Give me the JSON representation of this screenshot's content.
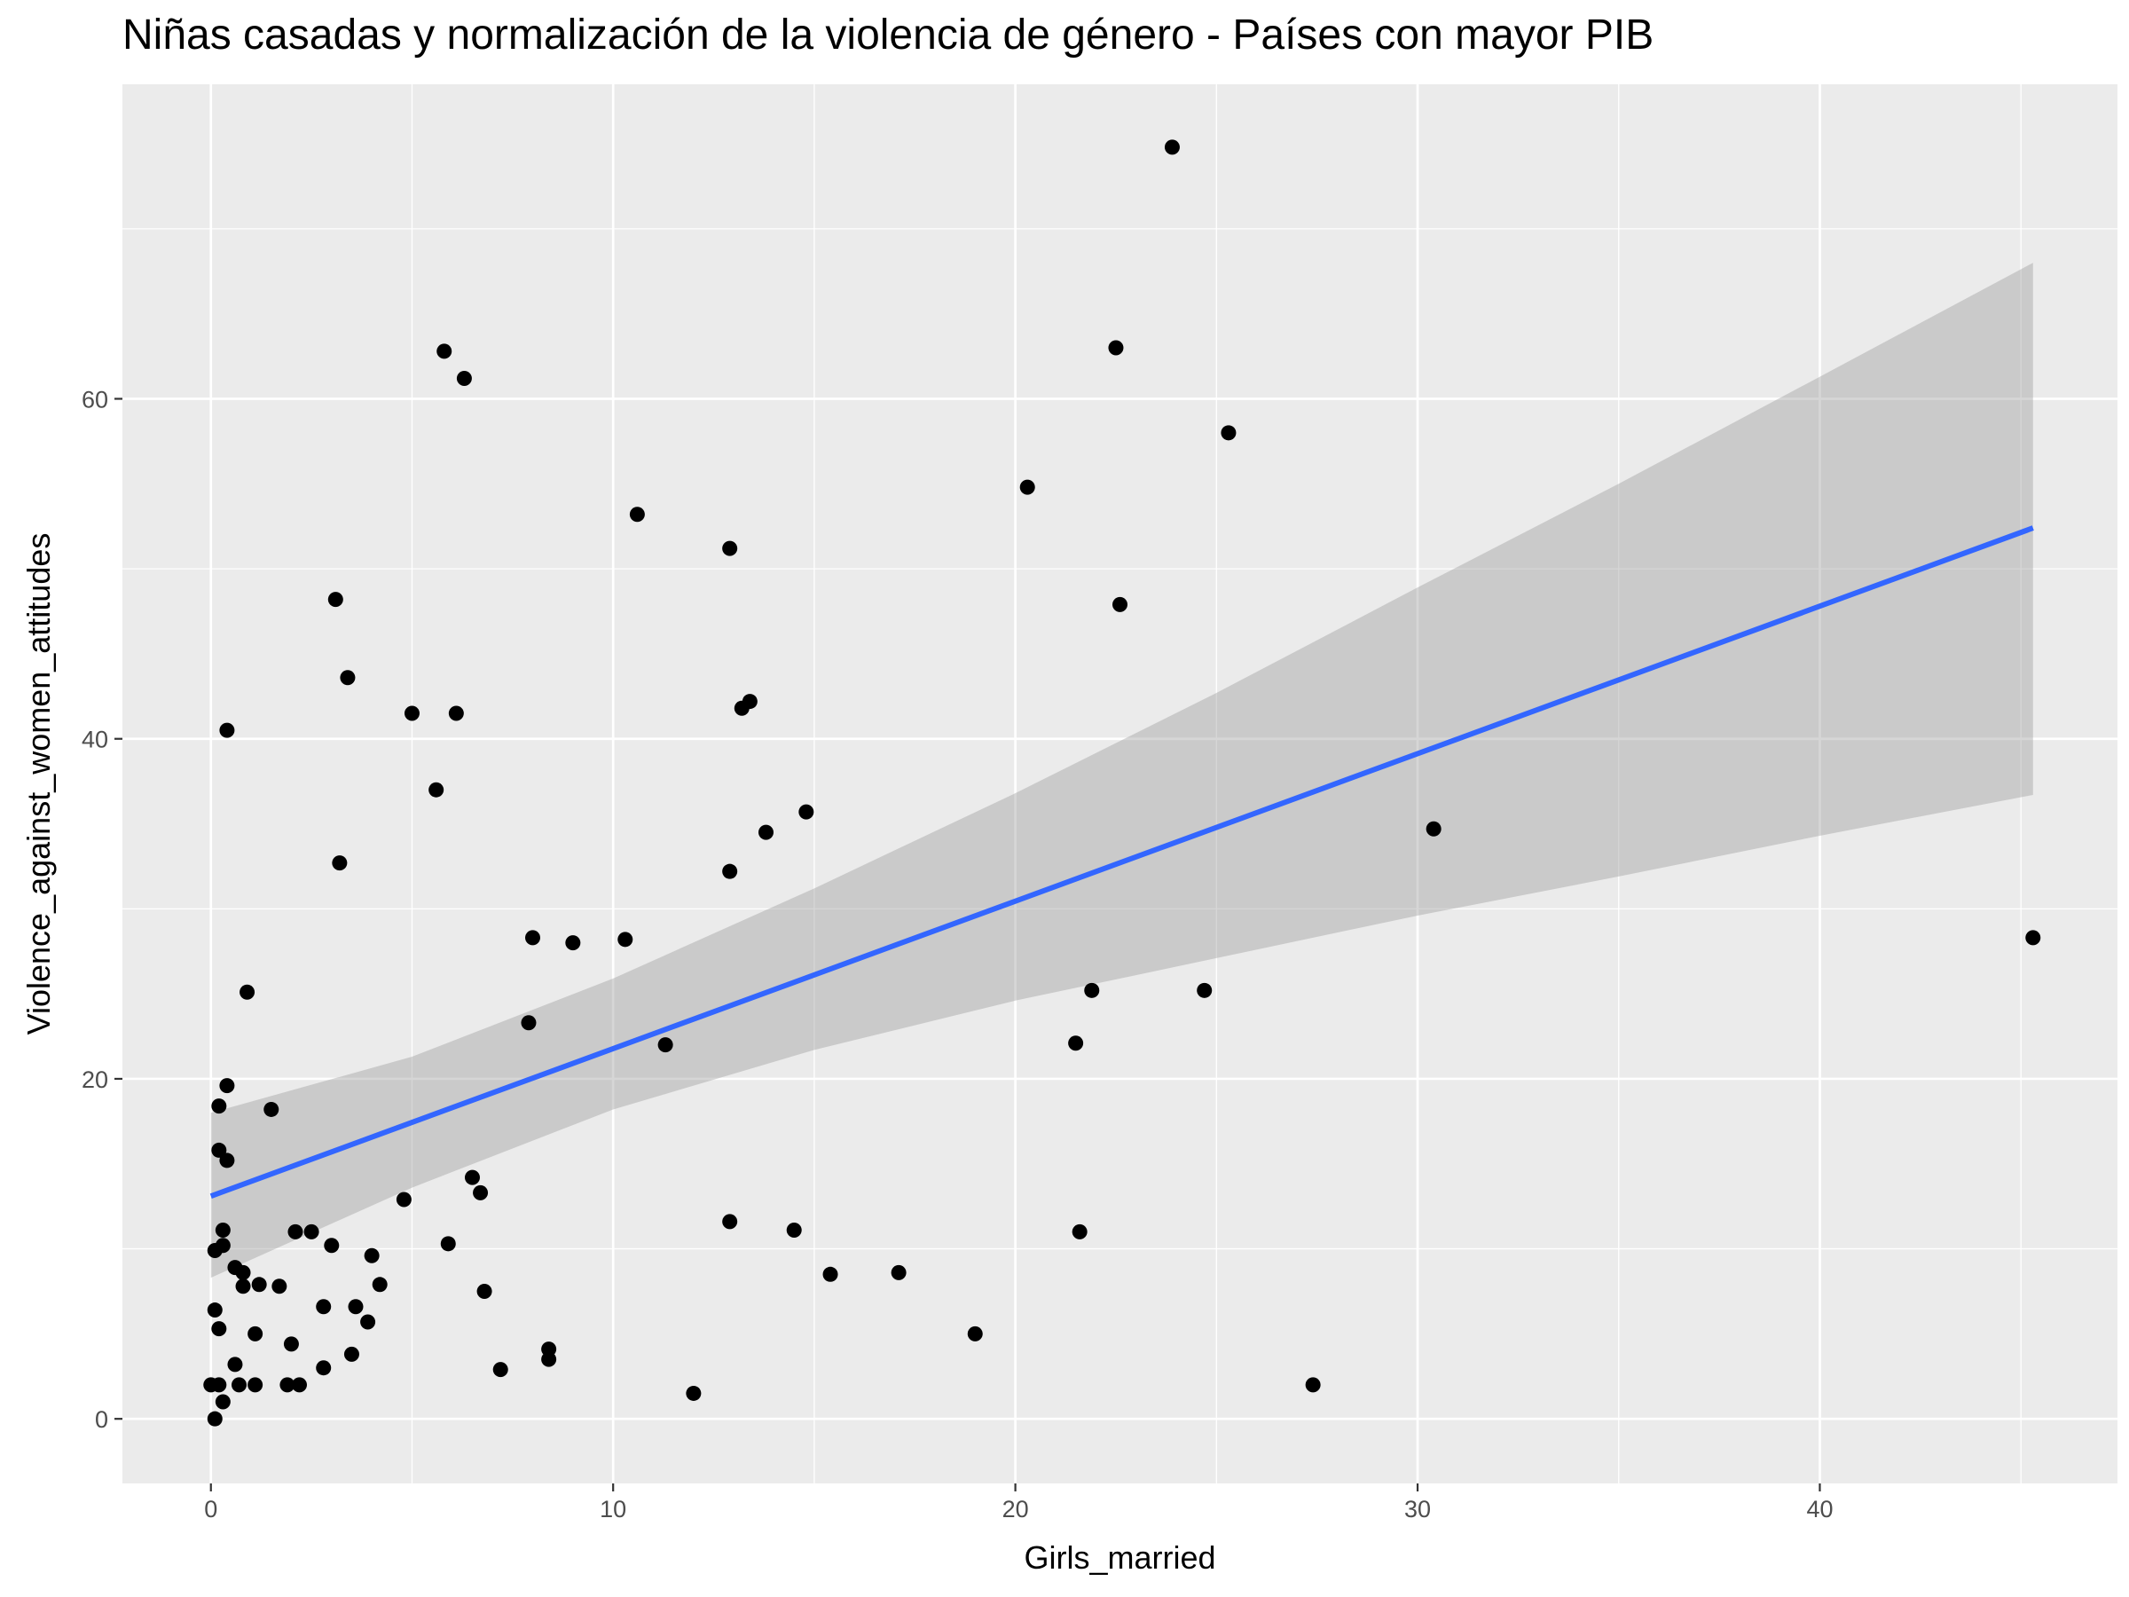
{
  "chart_data": {
    "type": "scatter",
    "title": "Niñas casadas y normalización de la violencia de género - Países con mayor PIB",
    "xlabel": "Girls_married",
    "ylabel": "Violence_against_women_attitudes",
    "xlim": [
      -2.2,
      47.4
    ],
    "ylim": [
      -3.8,
      78.5
    ],
    "xticks": [
      0,
      10,
      20,
      30,
      40
    ],
    "yticks": [
      0,
      20,
      40,
      60
    ],
    "grid": true,
    "colors": {
      "panel": "#ebebeb",
      "grid": "#ffffff",
      "points": "#000000",
      "line": "#3366ff",
      "ribbon": "#999999"
    },
    "points": [
      {
        "x": 0.0,
        "y": 2.0
      },
      {
        "x": 0.1,
        "y": 0.0
      },
      {
        "x": 0.2,
        "y": 2.0
      },
      {
        "x": 0.2,
        "y": 5.3
      },
      {
        "x": 0.1,
        "y": 6.4
      },
      {
        "x": 0.1,
        "y": 9.9
      },
      {
        "x": 0.3,
        "y": 10.2
      },
      {
        "x": 0.3,
        "y": 11.1
      },
      {
        "x": 0.2,
        "y": 15.8
      },
      {
        "x": 0.4,
        "y": 15.2
      },
      {
        "x": 0.2,
        "y": 18.4
      },
      {
        "x": 0.4,
        "y": 19.6
      },
      {
        "x": 0.4,
        "y": 40.5
      },
      {
        "x": 0.3,
        "y": 1.0
      },
      {
        "x": 0.6,
        "y": 3.2
      },
      {
        "x": 0.6,
        "y": 8.9
      },
      {
        "x": 0.7,
        "y": 2.0
      },
      {
        "x": 0.8,
        "y": 7.8
      },
      {
        "x": 0.8,
        "y": 8.6
      },
      {
        "x": 0.9,
        "y": 25.1
      },
      {
        "x": 1.1,
        "y": 2.0
      },
      {
        "x": 1.1,
        "y": 5.0
      },
      {
        "x": 1.2,
        "y": 7.9
      },
      {
        "x": 1.5,
        "y": 18.2
      },
      {
        "x": 1.7,
        "y": 7.8
      },
      {
        "x": 1.9,
        "y": 2.0
      },
      {
        "x": 2.0,
        "y": 4.4
      },
      {
        "x": 2.1,
        "y": 11.0
      },
      {
        "x": 2.2,
        "y": 2.0
      },
      {
        "x": 2.5,
        "y": 11.0
      },
      {
        "x": 2.8,
        "y": 3.0
      },
      {
        "x": 2.8,
        "y": 6.6
      },
      {
        "x": 3.0,
        "y": 10.2
      },
      {
        "x": 3.1,
        "y": 48.2
      },
      {
        "x": 3.2,
        "y": 32.7
      },
      {
        "x": 3.4,
        "y": 43.6
      },
      {
        "x": 3.5,
        "y": 3.8
      },
      {
        "x": 3.6,
        "y": 6.6
      },
      {
        "x": 3.9,
        "y": 5.7
      },
      {
        "x": 4.0,
        "y": 9.6
      },
      {
        "x": 4.2,
        "y": 7.9
      },
      {
        "x": 4.8,
        "y": 12.9
      },
      {
        "x": 5.0,
        "y": 41.5
      },
      {
        "x": 5.6,
        "y": 37.0
      },
      {
        "x": 5.8,
        "y": 62.8
      },
      {
        "x": 5.9,
        "y": 10.3
      },
      {
        "x": 6.1,
        "y": 41.5
      },
      {
        "x": 6.3,
        "y": 61.2
      },
      {
        "x": 6.5,
        "y": 14.2
      },
      {
        "x": 6.7,
        "y": 13.3
      },
      {
        "x": 6.8,
        "y": 7.5
      },
      {
        "x": 7.2,
        "y": 2.9
      },
      {
        "x": 7.9,
        "y": 23.3
      },
      {
        "x": 8.0,
        "y": 28.3
      },
      {
        "x": 8.4,
        "y": 3.5
      },
      {
        "x": 8.4,
        "y": 4.1
      },
      {
        "x": 9.0,
        "y": 28.0
      },
      {
        "x": 10.3,
        "y": 28.2
      },
      {
        "x": 10.6,
        "y": 53.2
      },
      {
        "x": 11.3,
        "y": 22.0
      },
      {
        "x": 12.0,
        "y": 1.5
      },
      {
        "x": 12.9,
        "y": 51.2
      },
      {
        "x": 12.9,
        "y": 32.2
      },
      {
        "x": 12.9,
        "y": 11.6
      },
      {
        "x": 13.2,
        "y": 41.8
      },
      {
        "x": 13.4,
        "y": 42.2
      },
      {
        "x": 13.8,
        "y": 34.5
      },
      {
        "x": 14.5,
        "y": 11.1
      },
      {
        "x": 14.8,
        "y": 35.7
      },
      {
        "x": 15.4,
        "y": 8.5
      },
      {
        "x": 17.1,
        "y": 8.6
      },
      {
        "x": 19.0,
        "y": 5.0
      },
      {
        "x": 20.3,
        "y": 54.8
      },
      {
        "x": 21.5,
        "y": 22.1
      },
      {
        "x": 21.6,
        "y": 11.0
      },
      {
        "x": 21.9,
        "y": 25.2
      },
      {
        "x": 22.5,
        "y": 63.0
      },
      {
        "x": 22.6,
        "y": 47.9
      },
      {
        "x": 23.9,
        "y": 74.8
      },
      {
        "x": 24.7,
        "y": 25.2
      },
      {
        "x": 25.3,
        "y": 58.0
      },
      {
        "x": 27.4,
        "y": 2.0
      },
      {
        "x": 30.4,
        "y": 34.7
      },
      {
        "x": 45.3,
        "y": 28.3
      }
    ],
    "trend": {
      "method": "lm",
      "x": [
        0,
        45.3
      ],
      "y": [
        13.1,
        52.4
      ],
      "ribbon": [
        {
          "x": 0,
          "lo": 8.3,
          "hi": 18.0
        },
        {
          "x": 5,
          "lo": 13.6,
          "hi": 21.3
        },
        {
          "x": 10,
          "lo": 18.2,
          "hi": 25.9
        },
        {
          "x": 15,
          "lo": 21.7,
          "hi": 31.2
        },
        {
          "x": 20,
          "lo": 24.6,
          "hi": 36.8
        },
        {
          "x": 25,
          "lo": 27.1,
          "hi": 42.7
        },
        {
          "x": 30,
          "lo": 29.6,
          "hi": 48.9
        },
        {
          "x": 35,
          "lo": 31.9,
          "hi": 55.0
        },
        {
          "x": 40,
          "lo": 34.3,
          "hi": 61.3
        },
        {
          "x": 45.3,
          "lo": 36.7,
          "hi": 68.0
        }
      ]
    }
  }
}
